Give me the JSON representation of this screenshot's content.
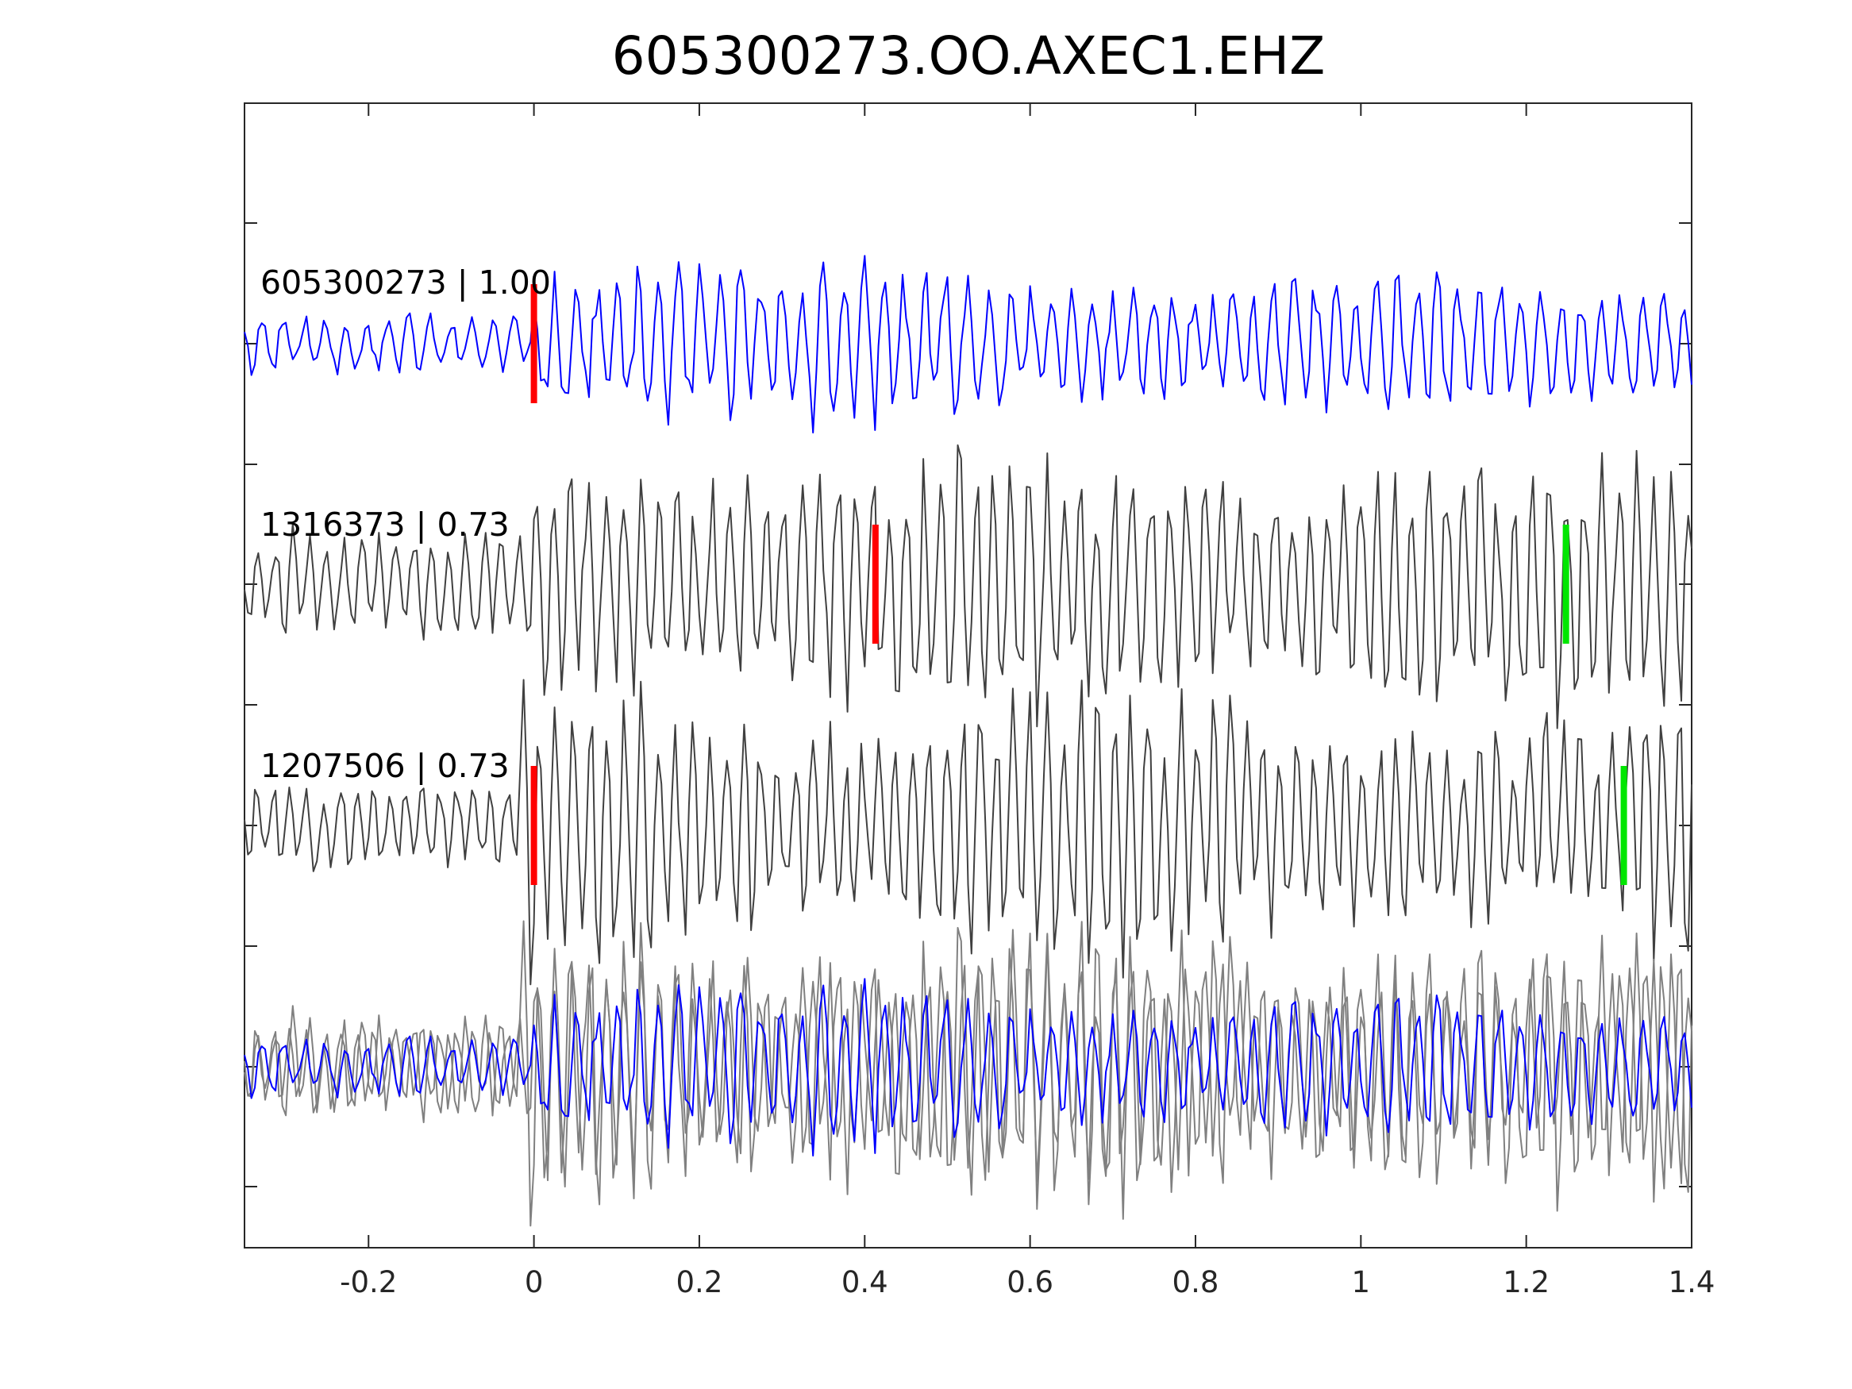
{
  "chart_data": {
    "type": "line",
    "title": "605300273.OO.AXEC1.EHZ",
    "xlabel": "",
    "ylabel": "",
    "xlim": [
      -0.35,
      1.4
    ],
    "xticks": [
      -0.2,
      0,
      0.2,
      0.4,
      0.6,
      0.8,
      1,
      1.2,
      1.4
    ],
    "xtick_labels": [
      "-0.2",
      "0",
      "0.2",
      "0.4",
      "0.6",
      "0.8",
      "1",
      "1.2",
      "1.4"
    ],
    "grid": false,
    "legend": "none",
    "colors": {
      "reference": "#0000ff",
      "similar_dark": "#404040",
      "similar_overlay": "#808080",
      "p_pick": "#ff0000",
      "s_pick": "#00e600",
      "axes": "#262626"
    },
    "traces": [
      {
        "label": "605300273 | 1.00",
        "event_id": "605300273",
        "correlation": 1.0,
        "color": "#0000ff",
        "p_pick": 0.0,
        "s_pick": null
      },
      {
        "label": "1316373 | 0.73",
        "event_id": "1316373",
        "correlation": 0.73,
        "color": "#404040",
        "p_pick": 0.413,
        "s_pick": 1.248
      },
      {
        "label": "1207506 | 0.73",
        "event_id": "1207506",
        "correlation": 0.73,
        "color": "#404040",
        "p_pick": 0.0,
        "s_pick": 1.318
      }
    ],
    "overlay": {
      "description_visible": false,
      "series_colors": [
        "#0000ff",
        "#808080",
        "#808080"
      ]
    }
  }
}
